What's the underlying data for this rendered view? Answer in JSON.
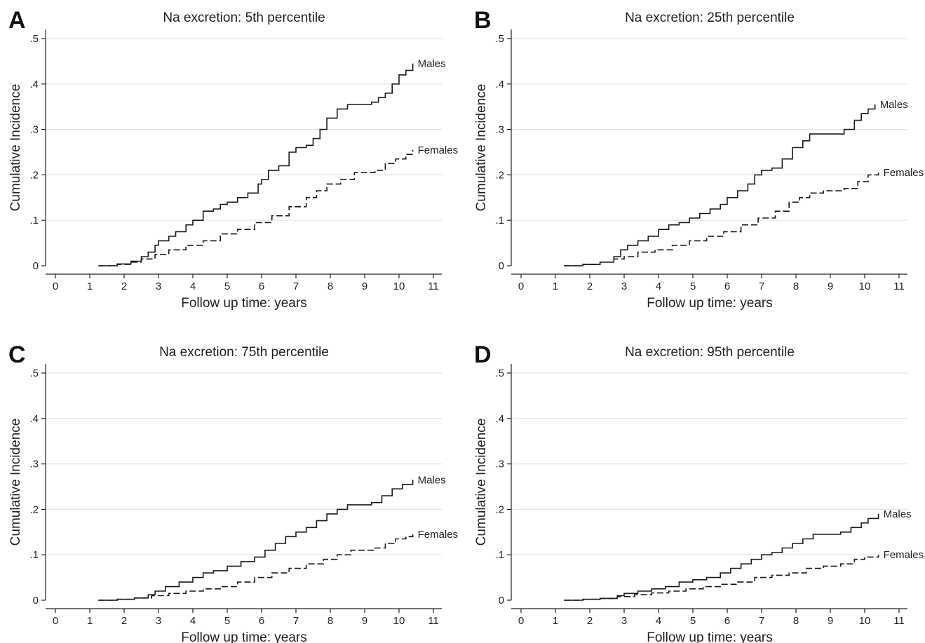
{
  "chart_data": [
    {
      "type": "line",
      "panel": "A",
      "title": "Na excretion: 5th percentile",
      "xlabel": "Follow up time: years",
      "ylabel": "Cumulative Incidence",
      "xlim": [
        0,
        11
      ],
      "ylim": [
        0,
        0.5
      ],
      "xticks": [
        "0",
        "1",
        "2",
        "3",
        "4",
        "5",
        "6",
        "7",
        "8",
        "9",
        "10",
        "11"
      ],
      "yticks": [
        "0",
        ".1",
        ".2",
        ".3",
        ".4",
        ".5"
      ],
      "grid": true,
      "series": [
        {
          "name": "Males",
          "style": "solid",
          "x": [
            1.25,
            1.8,
            2.2,
            2.5,
            2.7,
            2.9,
            3.0,
            3.3,
            3.5,
            3.8,
            4.0,
            4.3,
            4.6,
            4.8,
            5.0,
            5.3,
            5.6,
            5.9,
            6.0,
            6.2,
            6.5,
            6.8,
            7.0,
            7.3,
            7.5,
            7.7,
            7.9,
            8.2,
            8.5,
            9.2,
            9.4,
            9.6,
            9.8,
            10.0,
            10.2,
            10.4
          ],
          "y": [
            0,
            0.004,
            0.01,
            0.02,
            0.03,
            0.045,
            0.055,
            0.065,
            0.075,
            0.09,
            0.1,
            0.12,
            0.125,
            0.135,
            0.14,
            0.15,
            0.16,
            0.18,
            0.19,
            0.21,
            0.22,
            0.25,
            0.26,
            0.265,
            0.28,
            0.3,
            0.325,
            0.345,
            0.355,
            0.36,
            0.37,
            0.38,
            0.4,
            0.42,
            0.43,
            0.445
          ]
        },
        {
          "name": "Females",
          "style": "dashed",
          "x": [
            1.25,
            1.8,
            2.2,
            2.5,
            2.9,
            3.3,
            3.8,
            4.3,
            4.8,
            5.3,
            5.8,
            6.3,
            6.8,
            7.3,
            7.6,
            7.9,
            8.3,
            8.7,
            9.3,
            9.6,
            9.9,
            10.2,
            10.4
          ],
          "y": [
            0,
            0.003,
            0.008,
            0.015,
            0.025,
            0.035,
            0.045,
            0.055,
            0.07,
            0.08,
            0.095,
            0.11,
            0.13,
            0.15,
            0.165,
            0.18,
            0.19,
            0.205,
            0.21,
            0.225,
            0.235,
            0.245,
            0.255
          ]
        }
      ]
    },
    {
      "type": "line",
      "panel": "B",
      "title": "Na excretion: 25th percentile",
      "xlabel": "Follow up time: years",
      "ylabel": "Cumulative Incidence",
      "xlim": [
        0,
        11
      ],
      "ylim": [
        0,
        0.5
      ],
      "xticks": [
        "0",
        "1",
        "2",
        "3",
        "4",
        "5",
        "6",
        "7",
        "8",
        "9",
        "10",
        "11"
      ],
      "yticks": [
        "0",
        ".1",
        ".2",
        ".3",
        ".4",
        ".5"
      ],
      "grid": true,
      "series": [
        {
          "name": "Males",
          "style": "solid",
          "x": [
            1.25,
            1.8,
            2.3,
            2.7,
            2.9,
            3.1,
            3.4,
            3.7,
            4.0,
            4.3,
            4.6,
            4.9,
            5.2,
            5.5,
            5.8,
            6.0,
            6.3,
            6.6,
            6.8,
            7.0,
            7.3,
            7.6,
            7.9,
            8.2,
            8.4,
            8.7,
            9.4,
            9.7,
            9.9,
            10.1,
            10.3
          ],
          "y": [
            0,
            0.003,
            0.008,
            0.02,
            0.035,
            0.045,
            0.055,
            0.065,
            0.08,
            0.09,
            0.095,
            0.105,
            0.115,
            0.125,
            0.135,
            0.15,
            0.165,
            0.18,
            0.2,
            0.21,
            0.215,
            0.235,
            0.26,
            0.275,
            0.29,
            0.29,
            0.3,
            0.32,
            0.335,
            0.345,
            0.355
          ]
        },
        {
          "name": "Females",
          "style": "dashed",
          "x": [
            1.25,
            1.8,
            2.3,
            2.7,
            3.0,
            3.4,
            3.9,
            4.4,
            4.9,
            5.4,
            5.9,
            6.4,
            6.9,
            7.4,
            7.8,
            8.1,
            8.4,
            8.8,
            9.4,
            9.8,
            10.1,
            10.4
          ],
          "y": [
            0,
            0.003,
            0.008,
            0.015,
            0.02,
            0.03,
            0.035,
            0.045,
            0.055,
            0.065,
            0.075,
            0.09,
            0.105,
            0.12,
            0.14,
            0.15,
            0.16,
            0.165,
            0.17,
            0.185,
            0.2,
            0.205
          ]
        }
      ]
    },
    {
      "type": "line",
      "panel": "C",
      "title": "Na excretion: 75th percentile",
      "xlabel": "Follow up time: years",
      "ylabel": "Cumulative Incidence",
      "xlim": [
        0,
        11
      ],
      "ylim": [
        0,
        0.5
      ],
      "xticks": [
        "0",
        "1",
        "2",
        "3",
        "4",
        "5",
        "6",
        "7",
        "8",
        "9",
        "10",
        "11"
      ],
      "yticks": [
        "0",
        ".1",
        ".2",
        ".3",
        ".4",
        ".5"
      ],
      "grid": true,
      "series": [
        {
          "name": "Males",
          "style": "solid",
          "x": [
            1.25,
            1.8,
            2.3,
            2.7,
            2.9,
            3.2,
            3.6,
            4.0,
            4.3,
            4.6,
            5.0,
            5.4,
            5.8,
            6.1,
            6.4,
            6.7,
            7.0,
            7.3,
            7.6,
            7.9,
            8.2,
            8.5,
            9.2,
            9.5,
            9.8,
            10.1,
            10.4
          ],
          "y": [
            0,
            0.002,
            0.005,
            0.012,
            0.02,
            0.03,
            0.04,
            0.05,
            0.06,
            0.065,
            0.075,
            0.085,
            0.095,
            0.11,
            0.125,
            0.14,
            0.15,
            0.16,
            0.175,
            0.19,
            0.2,
            0.21,
            0.215,
            0.23,
            0.245,
            0.255,
            0.265
          ]
        },
        {
          "name": "Females",
          "style": "dashed",
          "x": [
            1.25,
            1.8,
            2.3,
            2.8,
            3.3,
            3.8,
            4.3,
            4.8,
            5.3,
            5.8,
            6.3,
            6.8,
            7.3,
            7.8,
            8.2,
            8.6,
            9.3,
            9.6,
            9.9,
            10.2,
            10.4
          ],
          "y": [
            0,
            0.002,
            0.005,
            0.01,
            0.015,
            0.02,
            0.025,
            0.03,
            0.04,
            0.05,
            0.06,
            0.07,
            0.08,
            0.09,
            0.1,
            0.11,
            0.115,
            0.125,
            0.135,
            0.14,
            0.145
          ]
        }
      ]
    },
    {
      "type": "line",
      "panel": "D",
      "title": "Na excretion: 95th percentile",
      "xlabel": "Follow up time: years",
      "ylabel": "Cumulative Incidence",
      "xlim": [
        0,
        11
      ],
      "ylim": [
        0,
        0.5
      ],
      "xticks": [
        "0",
        "1",
        "2",
        "3",
        "4",
        "5",
        "6",
        "7",
        "8",
        "9",
        "10",
        "11"
      ],
      "yticks": [
        "0",
        ".1",
        ".2",
        ".3",
        ".4",
        ".5"
      ],
      "grid": true,
      "series": [
        {
          "name": "Males",
          "style": "solid",
          "x": [
            1.25,
            1.8,
            2.3,
            2.8,
            3.0,
            3.4,
            3.8,
            4.2,
            4.6,
            5.0,
            5.4,
            5.8,
            6.1,
            6.4,
            6.7,
            7.0,
            7.3,
            7.6,
            7.9,
            8.2,
            8.5,
            9.3,
            9.6,
            9.9,
            10.1,
            10.4
          ],
          "y": [
            0,
            0.002,
            0.004,
            0.01,
            0.015,
            0.02,
            0.025,
            0.03,
            0.04,
            0.045,
            0.05,
            0.06,
            0.07,
            0.08,
            0.09,
            0.1,
            0.105,
            0.115,
            0.125,
            0.135,
            0.145,
            0.15,
            0.16,
            0.17,
            0.18,
            0.19
          ]
        },
        {
          "name": "Females",
          "style": "dashed",
          "x": [
            1.25,
            1.8,
            2.3,
            2.8,
            3.3,
            3.8,
            4.3,
            4.8,
            5.3,
            5.8,
            6.3,
            6.8,
            7.3,
            7.8,
            8.3,
            8.8,
            9.3,
            9.7,
            10.0,
            10.4
          ],
          "y": [
            0,
            0.002,
            0.004,
            0.008,
            0.012,
            0.016,
            0.02,
            0.025,
            0.03,
            0.035,
            0.04,
            0.05,
            0.055,
            0.06,
            0.07,
            0.075,
            0.08,
            0.09,
            0.095,
            0.1
          ]
        }
      ]
    }
  ]
}
